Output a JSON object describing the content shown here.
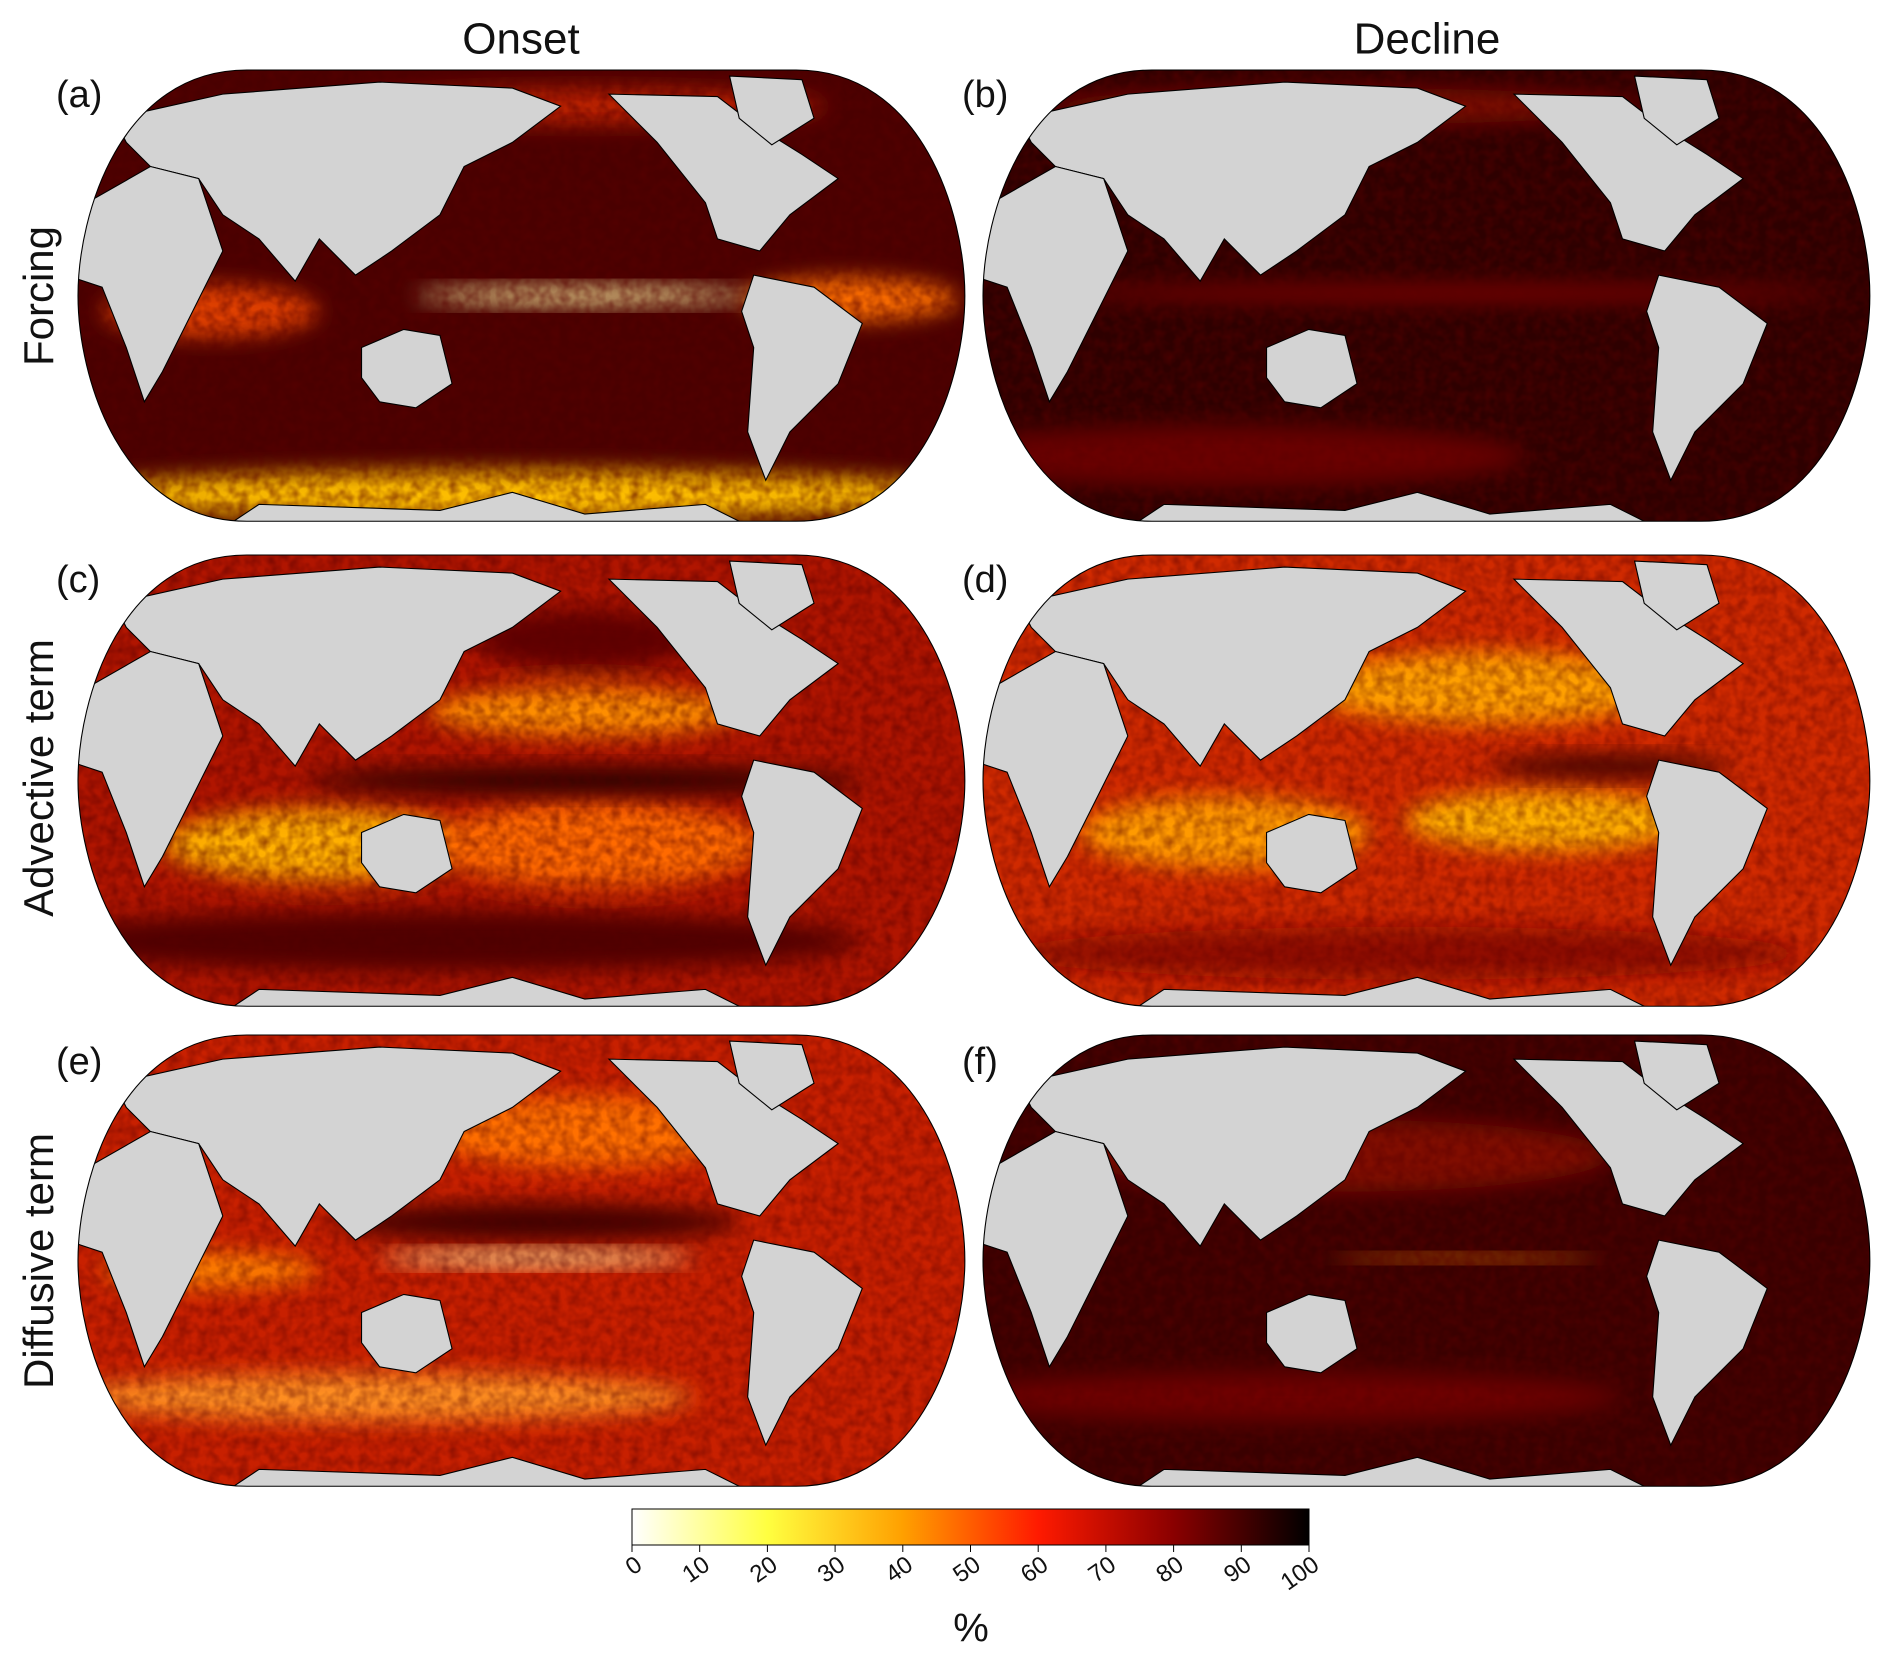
{
  "column_titles": [
    "Onset",
    "Decline"
  ],
  "row_labels": [
    "Forcing",
    "Advective term",
    "Diffusive term"
  ],
  "panels": [
    {
      "label": "(a)"
    },
    {
      "label": "(b)"
    },
    {
      "label": "(c)"
    },
    {
      "label": "(d)"
    },
    {
      "label": "(e)"
    },
    {
      "label": "(f)"
    }
  ],
  "colorbar": {
    "label": "%",
    "lim": [
      0,
      100
    ],
    "ticks": [
      0,
      10,
      20,
      30,
      40,
      50,
      60,
      70,
      80,
      90,
      100
    ],
    "colormap": [
      "#ffffff",
      "#ffff40",
      "#ffa000",
      "#ff1a00",
      "#8a0000",
      "#000000"
    ]
  }
}
